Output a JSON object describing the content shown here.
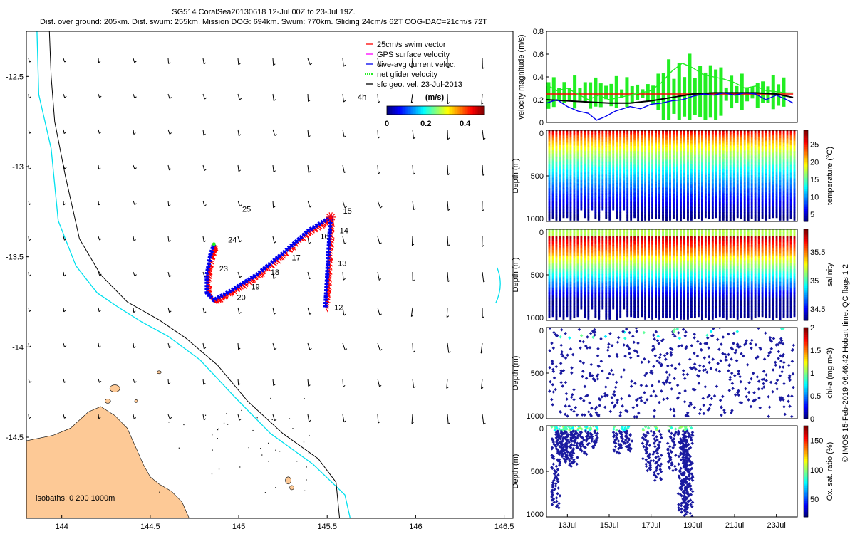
{
  "header": {
    "line1": "SG514 CoralSea20130618 12-Jul 00Z to 23-Jul 19Z.",
    "line2": "Dist. over ground: 205km. Dist. swum: 255km. Mission DOG: 694km. Swum: 770km. Gliding 24cm/s 62T COG-DAC=21cm/s 72T"
  },
  "colors": {
    "land": "#fdc996",
    "isobath_200": "#00e0ee",
    "isobath_1000": "#000000",
    "track_red": "#ff0000",
    "track_blue": "#0000ee",
    "net_green": "#22ee22",
    "gps_magenta": "#ff00ff"
  },
  "chart_data": [
    {
      "type": "scatter",
      "id": "map",
      "xlim": [
        143.8,
        146.55
      ],
      "ylim": [
        -14.95,
        -12.25
      ],
      "xticks": [
        "144",
        "144.5",
        "145",
        "145.5",
        "146",
        "146.5"
      ],
      "yticks": [
        "-12.5",
        "-13",
        "-13.5",
        "-14",
        "-14.5"
      ],
      "legend": {
        "placement": "top-right",
        "items": [
          {
            "label": "25cm/s swim vector",
            "color": "#ff0000"
          },
          {
            "label": "GPS surface velocity",
            "color": "#ff00ff"
          },
          {
            "label": "dive-avg current veloc.",
            "color": "#0000ee"
          },
          {
            "label": "net glider velocity",
            "color": "#22ee22"
          },
          {
            "label": "sfc geo. vel. 23-Jul-2013",
            "color": "#000000"
          }
        ]
      },
      "arrow_label": "4h",
      "colorbar": {
        "unit": "(m/s)",
        "ticks": [
          "0",
          "0.2",
          "0.4"
        ],
        "range": [
          0,
          0.5
        ]
      },
      "isobaths_text": "isobaths: 0   200  1000m",
      "track_labels": [
        {
          "text": "12",
          "lon": 145.54,
          "lat": -13.795
        },
        {
          "text": "13",
          "lon": 145.56,
          "lat": -13.55
        },
        {
          "text": "14",
          "lon": 145.57,
          "lat": -13.37
        },
        {
          "text": "15",
          "lon": 145.59,
          "lat": -13.26
        },
        {
          "text": "16",
          "lon": 145.46,
          "lat": -13.4
        },
        {
          "text": "17",
          "lon": 145.3,
          "lat": -13.52
        },
        {
          "text": "18",
          "lon": 145.18,
          "lat": -13.6
        },
        {
          "text": "19",
          "lon": 145.07,
          "lat": -13.68
        },
        {
          "text": "20",
          "lon": 144.99,
          "lat": -13.74
        },
        {
          "text": "23",
          "lon": 144.89,
          "lat": -13.58
        },
        {
          "text": "24",
          "lon": 144.94,
          "lat": -13.42
        },
        {
          "text": "25",
          "lon": 145.02,
          "lat": -13.25
        }
      ],
      "track_path": [
        [
          145.49,
          -13.78
        ],
        [
          145.5,
          -13.6
        ],
        [
          145.51,
          -13.43
        ],
        [
          145.52,
          -13.28
        ],
        [
          145.4,
          -13.35
        ],
        [
          145.25,
          -13.48
        ],
        [
          145.1,
          -13.6
        ],
        [
          144.97,
          -13.68
        ],
        [
          144.86,
          -13.74
        ],
        [
          144.82,
          -13.7
        ],
        [
          144.82,
          -13.6
        ],
        [
          144.84,
          -13.49
        ],
        [
          144.86,
          -13.43
        ]
      ]
    },
    {
      "type": "line",
      "id": "velocity",
      "ylabel": "velocity magnitude (m/s)",
      "ylim": [
        0,
        0.8
      ],
      "yticks": [
        "0",
        "0.2",
        "0.4",
        "0.6",
        "0.8"
      ],
      "series": [
        {
          "color": "#ff0000",
          "x": [
            12,
            23.8
          ],
          "y": [
            0.25,
            0.25
          ]
        },
        {
          "color": "#000000",
          "x": [
            12,
            13,
            14,
            15,
            16,
            17,
            18,
            19,
            20,
            21,
            22,
            23,
            23.8
          ],
          "y": [
            0.2,
            0.19,
            0.18,
            0.17,
            0.17,
            0.19,
            0.22,
            0.25,
            0.26,
            0.26,
            0.26,
            0.25,
            0.22
          ]
        },
        {
          "color": "#0000ee",
          "x": [
            12,
            12.5,
            13,
            13.5,
            14,
            14.4,
            14.8,
            15.3,
            16,
            16.5,
            17,
            17.5,
            18,
            18.5,
            19,
            19.5,
            20,
            20.5,
            21,
            21.5,
            22,
            22.5,
            23,
            23.5,
            23.8
          ],
          "y": [
            0.17,
            0.2,
            0.14,
            0.1,
            0.08,
            0.02,
            0.05,
            0.1,
            0.14,
            0.12,
            0.16,
            0.17,
            0.19,
            0.2,
            0.23,
            0.25,
            0.24,
            0.26,
            0.24,
            0.26,
            0.25,
            0.2,
            0.24,
            0.2,
            0.17
          ]
        },
        {
          "color": "#22ee22",
          "x": [
            12,
            12.5,
            13,
            13.5,
            14,
            14.5,
            15,
            15.5,
            16,
            16.5,
            17,
            17.5,
            18,
            18.5,
            19,
            19.5,
            20,
            20.5,
            21,
            21.5,
            22,
            22.5,
            23,
            23.5,
            23.8
          ],
          "y": [
            0.33,
            0.28,
            0.3,
            0.25,
            0.2,
            0.24,
            0.2,
            0.22,
            0.24,
            0.26,
            0.28,
            0.35,
            0.45,
            0.52,
            0.48,
            0.42,
            0.4,
            0.38,
            0.35,
            0.3,
            0.32,
            0.28,
            0.27,
            0.26,
            0.26
          ]
        }
      ]
    },
    {
      "type": "scatter",
      "id": "temperature",
      "ylabel": "Depth (m)",
      "clabel": "temperature (°C)",
      "ylim": [
        1000,
        0
      ],
      "yticks": [
        "0",
        "500",
        "1000"
      ],
      "colorbar_ticks": [
        "5",
        "10",
        "15",
        "20",
        "25"
      ],
      "colorbar_range": [
        3,
        29
      ]
    },
    {
      "type": "scatter",
      "id": "salinity",
      "ylabel": "Depth (m)",
      "clabel": "salinity",
      "ylim": [
        1000,
        0
      ],
      "yticks": [
        "0",
        "500",
        "1000"
      ],
      "colorbar_ticks": [
        "34.5",
        "35",
        "35.5"
      ],
      "colorbar_range": [
        34.3,
        35.9
      ]
    },
    {
      "type": "scatter",
      "id": "chla",
      "ylabel": "Depth (m)",
      "clabel": "chl-a (mg m-3)",
      "ylim": [
        1000,
        0
      ],
      "yticks": [
        "0",
        "500",
        "1000"
      ],
      "colorbar_ticks": [
        "0",
        "0.5",
        "1",
        "1.5",
        "2"
      ],
      "colorbar_range": [
        0,
        2
      ]
    },
    {
      "type": "scatter",
      "id": "oxygen",
      "ylabel": "Depth (m)",
      "clabel": "Ox. sat. ratio (%)",
      "ylim": [
        1000,
        0
      ],
      "yticks": [
        "0",
        "500",
        "1000"
      ],
      "colorbar_ticks": [
        "50",
        "100",
        "150"
      ],
      "colorbar_range": [
        20,
        175
      ],
      "xticks": [
        "13Jul",
        "15Jul",
        "17Jul",
        "19Jul",
        "21Jul",
        "23Jul"
      ],
      "xlim": [
        12,
        24
      ]
    }
  ],
  "side_note": "© IMOS 15-Feb-2019 06:46:42 Hobart time. QC flags 1  2"
}
